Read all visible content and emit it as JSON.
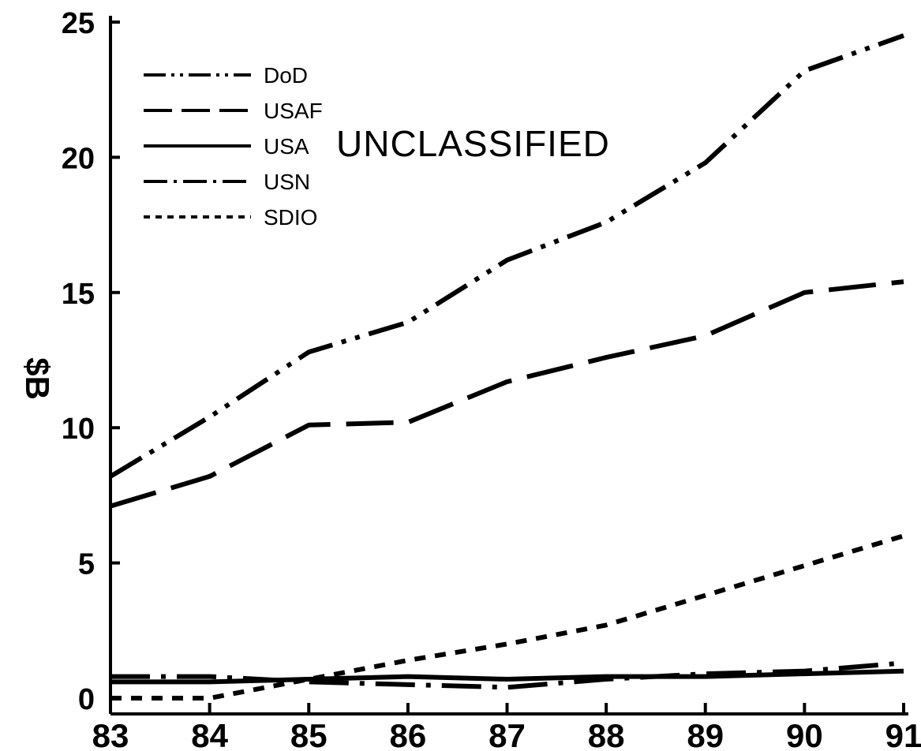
{
  "chart_data": {
    "type": "line",
    "ylabel": "$B",
    "xlabel": "",
    "x": [
      "83",
      "84",
      "85",
      "86",
      "87",
      "88",
      "89",
      "90",
      "91"
    ],
    "y_ticks": [
      "0",
      "5",
      "10",
      "15",
      "20",
      "25"
    ],
    "ylim": [
      0,
      25
    ],
    "grid": false,
    "legend": "top-left",
    "annotation": "UNCLASSIFIED",
    "series": [
      {
        "name": "DoD",
        "dash": "dash-dot-dot",
        "values": [
          8.2,
          10.4,
          12.8,
          13.9,
          16.2,
          17.6,
          19.8,
          23.2,
          24.5
        ]
      },
      {
        "name": "USAF",
        "dash": "long-dash",
        "values": [
          7.1,
          8.2,
          10.1,
          10.2,
          11.7,
          12.6,
          13.4,
          15.0,
          15.4
        ]
      },
      {
        "name": "USA",
        "dash": "solid",
        "values": [
          0.6,
          0.6,
          0.7,
          0.8,
          0.7,
          0.8,
          0.8,
          0.9,
          1.0
        ]
      },
      {
        "name": "USN",
        "dash": "dash-dot",
        "values": [
          0.8,
          0.8,
          0.6,
          0.5,
          0.4,
          0.7,
          0.9,
          1.0,
          1.3
        ]
      },
      {
        "name": "SDIO",
        "dash": "short-dash",
        "values": [
          0.0,
          0.0,
          0.7,
          1.4,
          2.0,
          2.7,
          3.8,
          4.9,
          6.0
        ]
      }
    ]
  }
}
